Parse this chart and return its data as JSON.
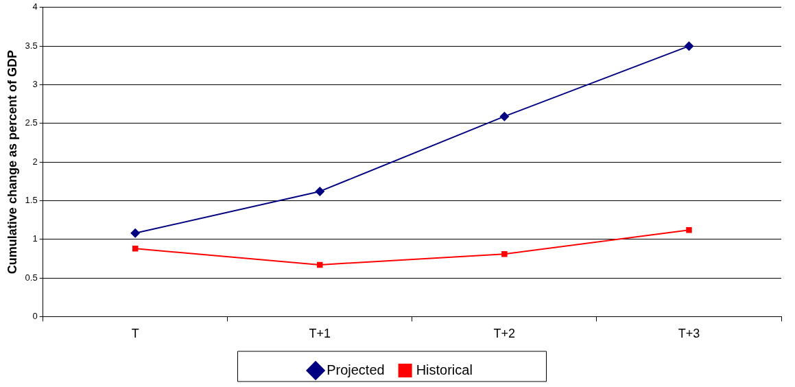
{
  "chart_data": {
    "type": "line",
    "ylabel": "Cumulative change as percent of GDP",
    "categories": [
      "T",
      "T+1",
      "T+2",
      "T+3"
    ],
    "series": [
      {
        "name": "Projected",
        "color": "#000080",
        "marker": "diamond",
        "values": [
          1.08,
          1.62,
          2.59,
          3.5
        ]
      },
      {
        "name": "Historical",
        "color": "#ff0000",
        "marker": "square",
        "values": [
          0.88,
          0.67,
          0.81,
          1.12
        ]
      }
    ],
    "ylim": [
      0,
      4
    ],
    "yticks": [
      0,
      0.5,
      1,
      1.5,
      2,
      2.5,
      3,
      3.5,
      4
    ],
    "grid": "y",
    "legend": "bottom",
    "line_style": "solid"
  }
}
